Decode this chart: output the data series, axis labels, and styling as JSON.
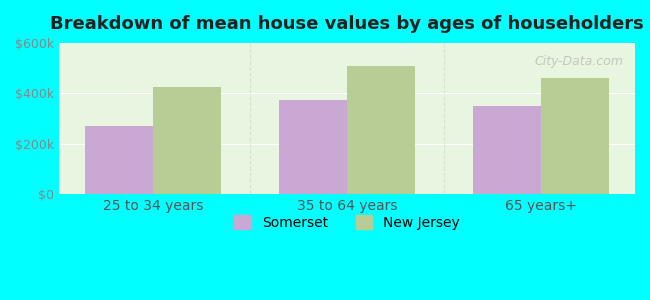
{
  "title": "Breakdown of mean house values by ages of householders",
  "categories": [
    "25 to 34 years",
    "35 to 64 years",
    "65 years+"
  ],
  "somerset_values": [
    270000,
    375000,
    350000
  ],
  "nj_values": [
    425000,
    510000,
    460000
  ],
  "ylim": [
    0,
    600000
  ],
  "yticks": [
    0,
    200000,
    400000,
    600000
  ],
  "ytick_labels": [
    "$0",
    "$200k",
    "$400k",
    "$600k"
  ],
  "somerset_color": "#c9a8d4",
  "nj_color": "#b8cc96",
  "background_color": "#00ffff",
  "plot_bg_color_top": "#f0f8f0",
  "plot_bg_color_bottom": "#e8f5e8",
  "bar_width": 0.35,
  "legend_somerset": "Somerset",
  "legend_nj": "New Jersey",
  "watermark": "City-Data.com"
}
